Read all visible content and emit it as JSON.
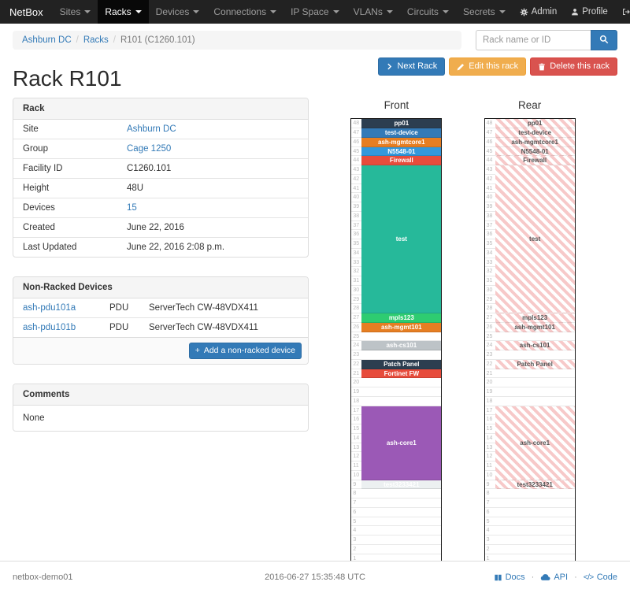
{
  "colors": {
    "accent": "#337ab7",
    "warning": "#f0ad4e",
    "danger": "#d9534f",
    "navbar_bg": "#222222",
    "rear_stripe": "#f7c9c9"
  },
  "navbar": {
    "brand": "NetBox",
    "items": [
      {
        "label": "Sites",
        "active": false
      },
      {
        "label": "Racks",
        "active": true
      },
      {
        "label": "Devices",
        "active": false
      },
      {
        "label": "Connections",
        "active": false
      },
      {
        "label": "IP Space",
        "active": false
      },
      {
        "label": "VLANs",
        "active": false
      },
      {
        "label": "Circuits",
        "active": false
      },
      {
        "label": "Secrets",
        "active": false
      }
    ],
    "right_items": [
      {
        "label": "Admin",
        "icon": "gear-icon"
      },
      {
        "label": "Profile",
        "icon": "user-icon"
      },
      {
        "label": "Log out",
        "icon": "logout-icon"
      }
    ]
  },
  "breadcrumb": {
    "items": [
      {
        "label": "Ashburn DC",
        "link": true
      },
      {
        "label": "Racks",
        "link": true
      },
      {
        "label": "R101 (C1260.101)",
        "link": false
      }
    ]
  },
  "search": {
    "placeholder": "Rack name or ID"
  },
  "actions": {
    "next_rack": "Next Rack",
    "edit_rack": "Edit this rack",
    "delete_rack": "Delete this rack"
  },
  "page_title": "Rack R101",
  "rack_panel": {
    "title": "Rack",
    "rows": [
      {
        "label": "Site",
        "value": "Ashburn DC",
        "link": true
      },
      {
        "label": "Group",
        "value": "Cage 1250",
        "link": true
      },
      {
        "label": "Facility ID",
        "value": "C1260.101",
        "link": false
      },
      {
        "label": "Height",
        "value": "48U",
        "link": false
      },
      {
        "label": "Devices",
        "value": "15",
        "link": true
      },
      {
        "label": "Created",
        "value": "June 22, 2016",
        "link": false
      },
      {
        "label": "Last Updated",
        "value": "June 22, 2016 2:08 p.m.",
        "link": false
      }
    ]
  },
  "nonracked_panel": {
    "title": "Non-Racked Devices",
    "rows": [
      {
        "name": "ash-pdu101a",
        "role": "PDU",
        "type": "ServerTech CW-48VDX411"
      },
      {
        "name": "ash-pdu101b",
        "role": "PDU",
        "type": "ServerTech CW-48VDX411"
      }
    ],
    "add_button": "Add a non-racked device"
  },
  "comments_panel": {
    "title": "Comments",
    "body": "None"
  },
  "elevations": {
    "front_title": "Front",
    "rear_title": "Rear",
    "units_total": 48,
    "devices": [
      {
        "name": "pp01",
        "top_unit": 48,
        "height": 1,
        "color": "#2c3e50",
        "front_only": false
      },
      {
        "name": "test-device",
        "top_unit": 47,
        "height": 1,
        "color": "#337ab7",
        "front_only": false
      },
      {
        "name": "ash-mgmtcore1",
        "top_unit": 46,
        "height": 1,
        "color": "#e67e22",
        "front_only": false
      },
      {
        "name": "N5548-01",
        "top_unit": 45,
        "height": 1,
        "color": "#3498db",
        "front_only": false
      },
      {
        "name": "Firewall",
        "top_unit": 44,
        "height": 1,
        "color": "#e74c3c",
        "front_only": false
      },
      {
        "name": "test",
        "top_unit": 43,
        "height": 16,
        "color": "#26b99a",
        "front_only": false
      },
      {
        "name": "mpls123",
        "top_unit": 27,
        "height": 1,
        "color": "#2ecc71",
        "front_only": false
      },
      {
        "name": "ash-mgmt101",
        "top_unit": 26,
        "height": 1,
        "color": "#e67e22",
        "front_only": false
      },
      {
        "name": "ash-cs101",
        "top_unit": 24,
        "height": 1,
        "color": "#bdc3c7",
        "front_only": false
      },
      {
        "name": "Patch Panel",
        "top_unit": 22,
        "height": 1,
        "color": "#2c3e50",
        "front_only": false
      },
      {
        "name": "Fortinet FW",
        "top_unit": 21,
        "height": 1,
        "color": "#e74c3c",
        "front_only": true
      },
      {
        "name": "ash-core1",
        "top_unit": 17,
        "height": 8,
        "color": "#9b59b6",
        "front_only": false
      },
      {
        "name": "test3233421",
        "top_unit": 9,
        "height": 1,
        "color": "#ecf0f1",
        "front_only": false
      }
    ]
  },
  "footer": {
    "hostname": "netbox-demo01",
    "timestamp": "2016-06-27 15:35:48 UTC",
    "links": [
      {
        "label": "Docs",
        "icon": "book-icon"
      },
      {
        "label": "API",
        "icon": "cloud-icon"
      },
      {
        "label": "Code",
        "icon": "code-icon"
      }
    ]
  }
}
